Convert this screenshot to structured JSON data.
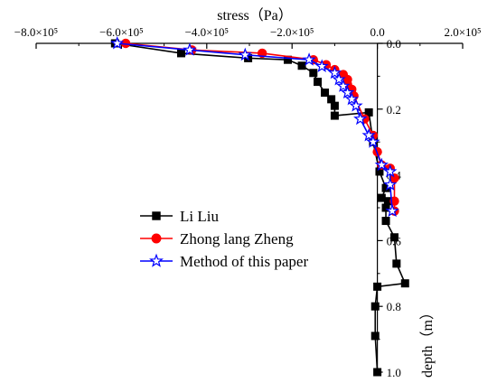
{
  "chart_data": {
    "type": "line",
    "x_axis": {
      "label": "stress（Pa）",
      "position": "top",
      "range": [
        -800000,
        200000
      ],
      "ticks": [
        {
          "value": -800000,
          "label": "−8.0×10⁵"
        },
        {
          "value": -600000,
          "label": "−6.0×10⁵"
        },
        {
          "value": -400000,
          "label": "−4.0×10⁵"
        },
        {
          "value": -200000,
          "label": "−2.0×10⁵"
        },
        {
          "value": 0,
          "label": "0.0"
        },
        {
          "value": 200000,
          "label": "2.0×10⁵"
        }
      ]
    },
    "y_axis": {
      "label": "depth（m）",
      "position": "at x=0",
      "range": [
        0,
        1.0
      ],
      "inverted": true,
      "ticks": [
        {
          "value": 0.0,
          "label": "0.0"
        },
        {
          "value": 0.2,
          "label": "0.2"
        },
        {
          "value": 0.4,
          "label": "0.4"
        },
        {
          "value": 0.6,
          "label": "0.6"
        },
        {
          "value": 0.8,
          "label": "0.8"
        },
        {
          "value": 1.0,
          "label": "1.0"
        }
      ]
    },
    "grid": false,
    "legend_position": "bottom-left",
    "series": [
      {
        "name": "Li Liu",
        "color": "#000000",
        "marker": "square",
        "points": [
          [
            -615000,
            0.0
          ],
          [
            -460000,
            0.03
          ],
          [
            -303000,
            0.045
          ],
          [
            -210000,
            0.05
          ],
          [
            -177000,
            0.068
          ],
          [
            -150000,
            0.09
          ],
          [
            -140000,
            0.117
          ],
          [
            -123000,
            0.15
          ],
          [
            -108000,
            0.17
          ],
          [
            -100000,
            0.19
          ],
          [
            -100000,
            0.22
          ],
          [
            -20000,
            0.21
          ],
          [
            -10000,
            0.3
          ],
          [
            5000,
            0.39
          ],
          [
            20000,
            0.44
          ],
          [
            10000,
            0.47
          ],
          [
            25000,
            0.48
          ],
          [
            20000,
            0.5
          ],
          [
            20000,
            0.54
          ],
          [
            40000,
            0.59
          ],
          [
            45000,
            0.67
          ],
          [
            65000,
            0.73
          ],
          [
            0,
            0.74
          ],
          [
            -5000,
            0.8
          ],
          [
            -5000,
            0.89
          ],
          [
            0,
            1.0
          ]
        ]
      },
      {
        "name": "Zhong lang Zheng",
        "color": "#ff0000",
        "marker": "circle",
        "points": [
          [
            -590000,
            0.0
          ],
          [
            -435000,
            0.02
          ],
          [
            -270000,
            0.03
          ],
          [
            -150000,
            0.05
          ],
          [
            -120000,
            0.065
          ],
          [
            -100000,
            0.08
          ],
          [
            -80000,
            0.095
          ],
          [
            -70000,
            0.11
          ],
          [
            -70000,
            0.125
          ],
          [
            -60000,
            0.14
          ],
          [
            -55000,
            0.16
          ],
          [
            -30000,
            0.23
          ],
          [
            -10000,
            0.28
          ],
          [
            0,
            0.33
          ],
          [
            10000,
            0.37
          ],
          [
            30000,
            0.38
          ],
          [
            40000,
            0.41
          ],
          [
            40000,
            0.48
          ],
          [
            40000,
            0.51
          ]
        ]
      },
      {
        "name": "Method of this paper",
        "color": "#0000ff",
        "marker": "star",
        "points": [
          [
            -610000,
            0.0
          ],
          [
            -440000,
            0.02
          ],
          [
            -310000,
            0.035
          ],
          [
            -160000,
            0.05
          ],
          [
            -130000,
            0.07
          ],
          [
            -100000,
            0.09
          ],
          [
            -90000,
            0.11
          ],
          [
            -80000,
            0.13
          ],
          [
            -70000,
            0.15
          ],
          [
            -60000,
            0.17
          ],
          [
            -50000,
            0.19
          ],
          [
            -40000,
            0.23
          ],
          [
            -20000,
            0.28
          ],
          [
            -10000,
            0.3
          ],
          [
            10000,
            0.37
          ],
          [
            30000,
            0.39
          ],
          [
            30000,
            0.43
          ],
          [
            35000,
            0.51
          ]
        ]
      }
    ]
  }
}
